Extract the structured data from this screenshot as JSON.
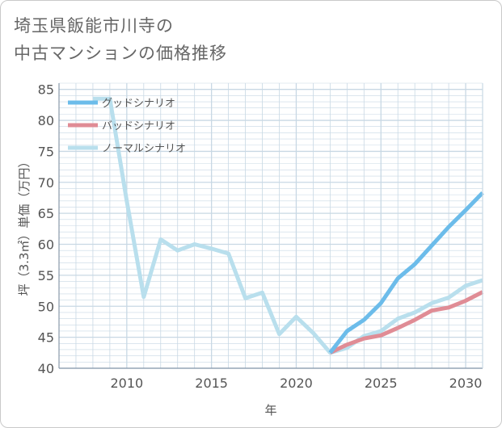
{
  "title_lines": [
    "埼玉県飯能市川寺の",
    "中古マンションの価格推移"
  ],
  "colors": {
    "good": "#6cbcea",
    "bad": "#e08c95",
    "normal": "#b9dfed",
    "grid": "#c8d8e4",
    "axis": "#8899aa"
  },
  "chart_data": {
    "type": "line",
    "title": "埼玉県飯能市川寺の中古マンションの価格推移",
    "xlabel": "年",
    "ylabel": "坪（3.3㎡）単価（万円）",
    "xlim": [
      2006,
      2031
    ],
    "ylim": [
      40,
      86
    ],
    "x_ticks": [
      2010,
      2015,
      2020,
      2025,
      2030
    ],
    "y_ticks": [
      40,
      45,
      50,
      55,
      60,
      65,
      70,
      75,
      80,
      85
    ],
    "legend_position": "top-left",
    "series": [
      {
        "key": "normal",
        "name": "ノーマルシナリオ",
        "x": [
          2008,
          2009,
          2010,
          2011,
          2012,
          2013,
          2014,
          2015,
          2016,
          2017,
          2018,
          2019,
          2020,
          2021,
          2022,
          2023,
          2024,
          2025,
          2026,
          2027,
          2028,
          2029,
          2030,
          2031
        ],
        "values": [
          83.5,
          83.5,
          67.0,
          51.5,
          60.8,
          59.0,
          60.0,
          59.3,
          58.5,
          51.3,
          52.2,
          45.5,
          48.3,
          45.7,
          42.5,
          43.3,
          45.2,
          46.0,
          48.0,
          49.0,
          50.5,
          51.4,
          53.3,
          54.2
        ]
      },
      {
        "key": "bad",
        "name": "バッドシナリオ",
        "x": [
          2022,
          2023,
          2024,
          2025,
          2026,
          2027,
          2028,
          2029,
          2030,
          2031
        ],
        "values": [
          42.5,
          43.8,
          44.8,
          45.3,
          46.5,
          47.8,
          49.3,
          49.8,
          50.9,
          52.3
        ]
      },
      {
        "key": "good",
        "name": "グッドシナリオ",
        "x": [
          2022,
          2023,
          2024,
          2025,
          2026,
          2027,
          2028,
          2029,
          2030,
          2031
        ],
        "values": [
          42.5,
          46.0,
          47.8,
          50.5,
          54.5,
          56.8,
          59.8,
          62.8,
          65.5,
          68.3
        ]
      }
    ],
    "legend": [
      {
        "key": "good",
        "label": "グッドシナリオ"
      },
      {
        "key": "bad",
        "label": "バッドシナリオ"
      },
      {
        "key": "normal",
        "label": "ノーマルシナリオ"
      }
    ]
  }
}
